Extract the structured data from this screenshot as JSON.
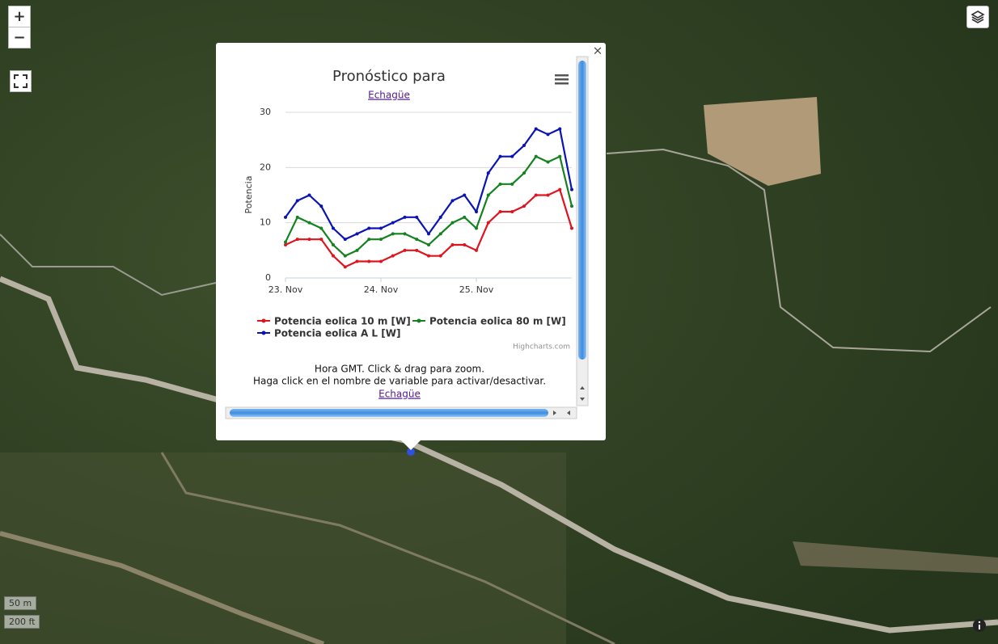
{
  "map": {
    "zoom_in": "+",
    "zoom_out": "−",
    "scale_metric": "50 m",
    "scale_imperial": "200 ft",
    "close": "×"
  },
  "chart_data": {
    "type": "line",
    "title": "Pronóstico para",
    "subtitle": "Echagüe",
    "y_label": "Potencia",
    "credits": "Highcharts.com",
    "categories": [
      "23. Nov",
      null,
      null,
      null,
      null,
      null,
      null,
      null,
      "24. Nov",
      null,
      null,
      null,
      null,
      null,
      null,
      null,
      "25. Nov",
      null,
      null,
      null,
      null,
      null,
      null,
      null,
      null
    ],
    "ylim": [
      0,
      30
    ],
    "yticks": [
      0,
      10,
      20,
      30
    ],
    "grid": true,
    "series": [
      {
        "name": "Potencia eolica 10 m [W]",
        "color": "#e0141e",
        "values": [
          6,
          7,
          7,
          7,
          4,
          2,
          3,
          3,
          3,
          4,
          5,
          5,
          4,
          4,
          6,
          6,
          5,
          10,
          12,
          12,
          13,
          15,
          15,
          16,
          9
        ]
      },
      {
        "name": "Potencia eolica 80 m [W]",
        "color": "#14821e",
        "values": [
          6.5,
          11,
          10,
          9,
          6,
          4,
          5,
          7,
          7,
          8,
          8,
          7,
          6,
          8,
          10,
          11,
          9,
          15,
          17,
          17,
          19,
          22,
          21,
          22,
          13
        ]
      },
      {
        "name": "Potencia eolica A L [W]",
        "color": "#0a14b4",
        "values": [
          11,
          14,
          15,
          13,
          9,
          7,
          8,
          9,
          9,
          10,
          11,
          11,
          8,
          11,
          14,
          15,
          12,
          19,
          22,
          22,
          24,
          27,
          26,
          27,
          16
        ]
      }
    ]
  },
  "popup": {
    "footer_line1": "Hora GMT. Click & drag para zoom.",
    "footer_line2": "Haga click en el nombre de variable para activar/desactivar.",
    "footer_link": "Echagüe"
  }
}
